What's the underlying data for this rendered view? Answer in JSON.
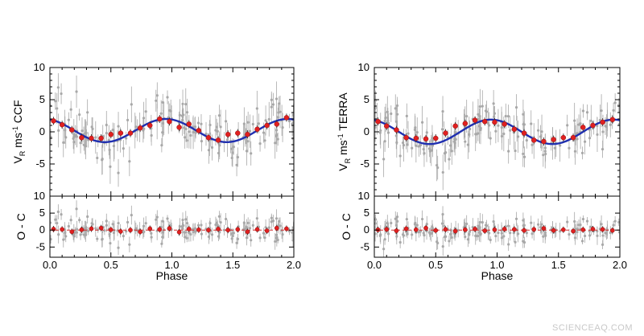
{
  "watermark": "SCIENCEAQ.COM",
  "colors": {
    "model": "#1f2fb0",
    "binned": "#e02020",
    "raw": "#a8a8a8",
    "zero_line": "#d03030",
    "axis": "#000000"
  },
  "chart_data": [
    {
      "type": "scatter",
      "panel": "left",
      "ylabel_main": "V",
      "ylabel_sub": "R",
      "ylabel_unit": " ms",
      "ylabel_sup": "-1",
      "ylabel_suffix": " CCF",
      "residual_ylabel": "O - C",
      "xlabel": "Phase",
      "xlim": [
        0.0,
        2.0
      ],
      "xticks": [
        "0.0",
        "0.5",
        "1.0",
        "1.5",
        "2.0"
      ],
      "ylim": [
        -10,
        10
      ],
      "yticks": [
        "-5",
        "0",
        "5",
        "10"
      ],
      "residual_ylim": [
        -8,
        10
      ],
      "residual_yticks": [
        "-5",
        "0",
        "5",
        "10"
      ],
      "model": {
        "amplitude": 1.8,
        "offset": 0.2,
        "phase_of_max": 0.95,
        "color": "#1f2fb0"
      },
      "binned": {
        "x": [
          0.03,
          0.1,
          0.18,
          0.26,
          0.34,
          0.42,
          0.5,
          0.58,
          0.66,
          0.74,
          0.82,
          0.9,
          0.98,
          1.06,
          1.14,
          1.22,
          1.3,
          1.38,
          1.46,
          1.54,
          1.62,
          1.7,
          1.78,
          1.86,
          1.94
        ],
        "y": [
          1.7,
          1.1,
          0.3,
          -0.9,
          -1.0,
          -1.0,
          -0.4,
          -0.2,
          -0.2,
          0.6,
          1.0,
          2.0,
          1.6,
          0.7,
          1.2,
          0.2,
          -0.9,
          -1.3,
          -0.4,
          -0.2,
          -0.4,
          0.4,
          1.0,
          1.2,
          2.2
        ],
        "residuals": [
          0.3,
          0.2,
          -0.5,
          0.1,
          0.4,
          0.6,
          0.1,
          -0.4,
          0.0,
          -0.5,
          0.4,
          0.2,
          0.5,
          -0.6,
          0.3,
          0.1,
          0.0,
          0.3,
          0.0,
          0.2,
          -0.5,
          0.2,
          -0.2,
          0.6,
          0.4
        ]
      },
      "raw_points": 170
    },
    {
      "type": "scatter",
      "panel": "right",
      "ylabel_main": "V",
      "ylabel_sub": "R",
      "ylabel_unit": " ms",
      "ylabel_sup": "-1",
      "ylabel_suffix": " TERRA",
      "residual_ylabel": "O - C",
      "xlabel": "Phase",
      "xlim": [
        0.0,
        2.0
      ],
      "xticks": [
        "0.0",
        "0.5",
        "1.0",
        "1.5",
        "2.0"
      ],
      "ylim": [
        -10,
        10
      ],
      "yticks": [
        "-5",
        "0",
        "5",
        "10"
      ],
      "residual_ylim": [
        -8,
        10
      ],
      "residual_yticks": [
        "-5",
        "0",
        "5",
        "10"
      ],
      "model": {
        "amplitude": 1.9,
        "offset": 0.0,
        "phase_of_max": 0.95,
        "color": "#1f2fb0"
      },
      "binned": {
        "x": [
          0.03,
          0.1,
          0.18,
          0.26,
          0.34,
          0.42,
          0.5,
          0.58,
          0.66,
          0.74,
          0.82,
          0.9,
          0.98,
          1.06,
          1.14,
          1.22,
          1.3,
          1.38,
          1.46,
          1.54,
          1.62,
          1.7,
          1.78,
          1.86,
          1.94
        ],
        "y": [
          1.6,
          0.9,
          0.3,
          -0.9,
          -1.0,
          -1.1,
          -1.0,
          -0.2,
          0.9,
          1.3,
          1.8,
          1.6,
          1.5,
          1.2,
          0.4,
          -0.2,
          -1.3,
          -1.5,
          -1.2,
          -0.9,
          -0.9,
          0.7,
          1.0,
          1.5,
          1.9
        ],
        "residuals": [
          0.1,
          0.2,
          -0.2,
          0.4,
          0.1,
          0.6,
          -0.1,
          0.2,
          -0.3,
          0.1,
          0.3,
          -0.2,
          0.1,
          0.3,
          0.2,
          -0.1,
          0.2,
          0.5,
          -0.1,
          0.1,
          -0.3,
          0.1,
          0.3,
          0.2,
          -0.1
        ]
      },
      "raw_points": 170
    }
  ]
}
